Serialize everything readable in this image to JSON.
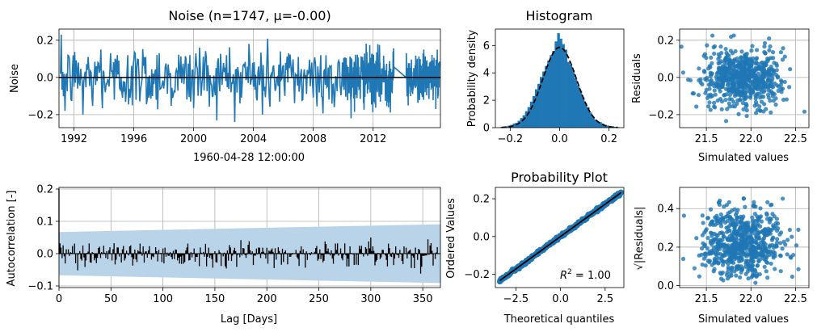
{
  "colors": {
    "series": "#1f77b4",
    "band": "#b9d3e8",
    "black": "#000000",
    "grid": "#b0b0b0"
  },
  "chart_data": [
    {
      "type": "line",
      "title": "Noise (n=1747, μ=-0.00)",
      "xlabel": "1960-04-28 12:00:00",
      "ylabel": "Noise",
      "x_range": [
        1991.0,
        2016.5
      ],
      "ylim": [
        -0.27,
        0.26
      ],
      "x_ticks": [
        1992,
        1996,
        2000,
        2004,
        2008,
        2012
      ],
      "x_tick_labels": [
        "1992",
        "1996",
        "2000",
        "2004",
        "2008",
        "2012"
      ],
      "y_ticks": [
        -0.2,
        0.0,
        0.2
      ],
      "y_tick_labels": [
        "−0.2",
        "0.0",
        "0.2"
      ],
      "grid": true,
      "n": 1747,
      "zero_line": true,
      "series": [
        {
          "x": [
            1991.1,
            1991.4,
            1991.7,
            1992.0,
            1992.3,
            1992.6,
            1992.9,
            1993.2,
            1993.5,
            1993.8,
            1994.1,
            1994.4,
            1994.7,
            1995.0,
            1995.3,
            1995.6,
            1995.9,
            1996.2,
            1996.5,
            1996.8,
            1997.1,
            1997.4,
            1997.7,
            1998.0,
            1998.3,
            1998.6,
            1998.9,
            1999.2,
            1999.5,
            1999.8,
            2000.1,
            2000.4,
            2000.7,
            2001.0,
            2001.3,
            2001.6,
            2001.9,
            2002.2,
            2002.5,
            2002.8,
            2003.1,
            2003.4,
            2003.7,
            2004.0,
            2004.3,
            2004.6,
            2004.9,
            2005.2,
            2005.5,
            2005.8,
            2006.1,
            2006.4,
            2006.7,
            2007.0,
            2007.3,
            2007.6,
            2007.9,
            2008.2,
            2008.5,
            2008.8,
            2009.1,
            2009.4,
            2009.7,
            2010.0,
            2013.4,
            2014.2,
            2016.4
          ],
          "y": [
            0.02,
            -0.18,
            0.1,
            -0.05,
            0.08,
            -0.2,
            0.04,
            -0.1,
            0.06,
            0.15,
            -0.08,
            0.03,
            -0.12,
            0.09,
            -0.02,
            0.12,
            -0.15,
            0.05,
            -0.04,
            0.11,
            -0.09,
            0.02,
            0.13,
            -0.06,
            0.07,
            -0.11,
            0.03,
            -0.03,
            0.1,
            -0.13,
            0.05,
            0.16,
            -0.07,
            0.01,
            -0.1,
            0.08,
            -0.04,
            0.12,
            -0.08,
            0.04,
            -0.14,
            0.06,
            0.18,
            -0.05,
            0.03,
            -0.2,
            0.09,
            0.02,
            -0.06,
            0.14,
            -0.1,
            0.05,
            -0.02,
            0.11,
            -0.12,
            0.04,
            0.08,
            -0.07,
            0.12,
            -0.04,
            0.06,
            -0.16,
            0.09,
            0.0,
            -0.12,
            0.0,
            -0.1
          ]
        }
      ]
    },
    {
      "type": "bar",
      "title": "Histogram",
      "xlabel": "",
      "ylabel": "Probability density",
      "x_range": [
        -0.26,
        0.26
      ],
      "ylim": [
        0,
        7.2
      ],
      "x_ticks": [
        -0.2,
        0.0,
        0.2
      ],
      "x_tick_labels": [
        "−0.2",
        "0.0",
        "0.2"
      ],
      "y_ticks": [
        0,
        2,
        4,
        6
      ],
      "y_tick_labels": [
        "0",
        "2",
        "4",
        "6"
      ],
      "grid": false,
      "bin_width": 0.01,
      "bin_centers": [
        -0.235,
        -0.225,
        -0.215,
        -0.205,
        -0.195,
        -0.185,
        -0.175,
        -0.165,
        -0.155,
        -0.145,
        -0.135,
        -0.125,
        -0.115,
        -0.105,
        -0.095,
        -0.085,
        -0.075,
        -0.065,
        -0.055,
        -0.045,
        -0.035,
        -0.025,
        -0.015,
        -0.005,
        0.005,
        0.015,
        0.025,
        0.035,
        0.045,
        0.055,
        0.065,
        0.075,
        0.085,
        0.095,
        0.105,
        0.115,
        0.125,
        0.135,
        0.145,
        0.155,
        0.165,
        0.175,
        0.185,
        0.195,
        0.205,
        0.215,
        0.225,
        0.235
      ],
      "values": [
        0.05,
        0.08,
        0.1,
        0.15,
        0.2,
        0.3,
        0.35,
        0.5,
        0.7,
        0.9,
        1.2,
        1.5,
        1.9,
        2.3,
        2.8,
        3.2,
        3.7,
        4.1,
        4.5,
        4.9,
        5.3,
        5.6,
        6.3,
        6.9,
        6.5,
        6.1,
        5.7,
        4.8,
        4.6,
        4.2,
        3.6,
        3.1,
        2.7,
        2.2,
        1.8,
        1.5,
        1.1,
        0.8,
        0.6,
        0.45,
        0.4,
        0.3,
        0.2,
        0.15,
        0.1,
        0.08,
        0.06,
        0.04
      ],
      "fit": {
        "type": "normal",
        "mean": 0.0,
        "std": 0.068,
        "style": "dashed"
      }
    },
    {
      "type": "scatter",
      "title": "",
      "xlabel": "Simulated values",
      "ylabel": "Residuals",
      "x_range": [
        21.2,
        22.65
      ],
      "ylim": [
        -0.27,
        0.26
      ],
      "x_ticks": [
        21.5,
        22.0,
        22.5
      ],
      "x_tick_labels": [
        "21.5",
        "22.0",
        "22.5"
      ],
      "y_ticks": [
        -0.2,
        0.0,
        0.2
      ],
      "y_tick_labels": [
        "−0.2",
        "0.0",
        "0.2"
      ],
      "grid": true,
      "points": {
        "x_center": 21.9,
        "x_spread": 0.22,
        "y_spread": 0.075,
        "count": 700
      }
    },
    {
      "type": "bar",
      "title": "",
      "xlabel": "Lag [Days]",
      "ylabel": "Autocorrelation [-]",
      "x_range": [
        0,
        367
      ],
      "ylim": [
        -0.105,
        0.205
      ],
      "x_ticks": [
        0,
        50,
        100,
        150,
        200,
        250,
        300,
        350
      ],
      "x_tick_labels": [
        "0",
        "50",
        "100",
        "150",
        "200",
        "250",
        "300",
        "350"
      ],
      "y_ticks": [
        -0.1,
        0.0,
        0.1,
        0.2
      ],
      "y_tick_labels": [
        "−0.1",
        "0.0",
        "0.1",
        "0.2"
      ],
      "grid": true,
      "lag0_value": 0.2,
      "confidence_band": {
        "lag": [
          0,
          367
        ],
        "upper": [
          0.067,
          0.091
        ],
        "lower": [
          -0.067,
          -0.091
        ]
      },
      "acf_amplitude": 0.035
    },
    {
      "type": "line",
      "title": "Probability Plot",
      "xlabel": "Theoretical quantiles",
      "ylabel": "Ordered Values",
      "x_range": [
        -3.65,
        3.55
      ],
      "ylim": [
        -0.27,
        0.26
      ],
      "x_ticks": [
        -2.5,
        0.0,
        2.5
      ],
      "x_tick_labels": [
        "−2.5",
        "0.0",
        "2.5"
      ],
      "y_ticks": [
        -0.2,
        0.0,
        0.2
      ],
      "y_tick_labels": [
        "−0.2",
        "0.0",
        "0.2"
      ],
      "grid": false,
      "fit_line": {
        "slope": 0.0685,
        "intercept": 0.0
      },
      "annotation": "R² = 1.00",
      "annotation_label": "R",
      "annotation_sup": "2",
      "annotation_value": " = 1.00"
    },
    {
      "type": "scatter",
      "title": "",
      "xlabel": "Simulated values",
      "ylabel": "√|Residuals|",
      "x_range": [
        21.2,
        22.65
      ],
      "ylim": [
        -0.01,
        0.51
      ],
      "x_ticks": [
        21.5,
        22.0,
        22.5
      ],
      "x_tick_labels": [
        "21.5",
        "22.0",
        "22.5"
      ],
      "y_ticks": [
        0.0,
        0.2,
        0.4
      ],
      "y_tick_labels": [
        "0.0",
        "0.2",
        "0.4"
      ],
      "grid": true,
      "points": {
        "x_center": 21.9,
        "x_spread": 0.22,
        "count": 700
      }
    }
  ]
}
